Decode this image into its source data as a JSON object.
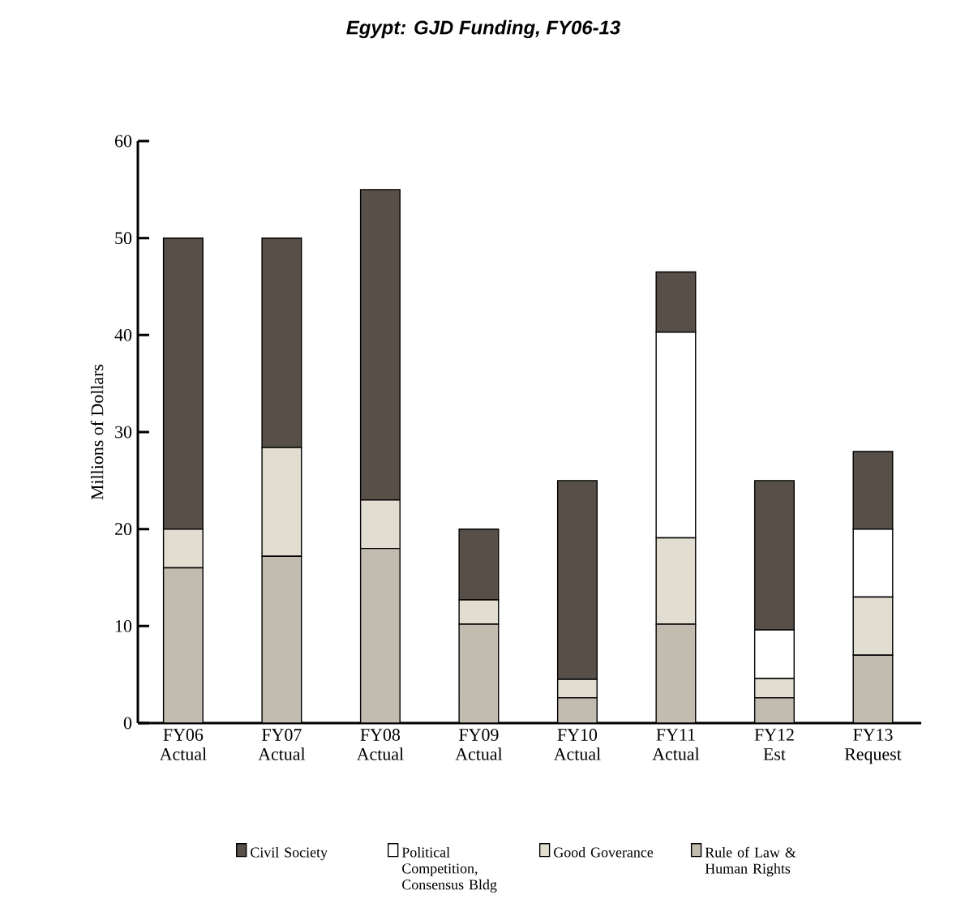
{
  "chart_data": {
    "type": "bar",
    "title": "Egypt: GJD Funding, FY06-13",
    "ylabel": "Millions of Dollars",
    "categories": [
      "FY06 Actual",
      "FY07 Actual",
      "FY08 Actual",
      "FY09 Actual",
      "FY10 Actual",
      "FY11 Actual",
      "FY12 Est",
      "FY13 Request"
    ],
    "stacked": true,
    "series": [
      {
        "name": "Rule of Law & Human Rights",
        "color": "#c2bbb0",
        "values": [
          16,
          17.2,
          18,
          10.2,
          2.6,
          10.2,
          2.6,
          7
        ]
      },
      {
        "name": "Good Goverance",
        "color": "#e1ddd0",
        "values": [
          4,
          11.2,
          5,
          2.5,
          1.9,
          8.9,
          2,
          6
        ]
      },
      {
        "name": "Political Competition, Consensus Bldg",
        "color": "#ffffff",
        "values": [
          null,
          null,
          null,
          null,
          null,
          21.2,
          5,
          7
        ]
      },
      {
        "name": "Civil Society",
        "color": "#574f48",
        "values": [
          30,
          21.6,
          32,
          7.3,
          20.5,
          6.2,
          15.4,
          8
        ]
      }
    ],
    "ylim": [
      0,
      60
    ],
    "yticks": [
      0,
      10,
      20,
      30,
      40,
      50,
      60
    ],
    "grid": false,
    "legend": "bottom"
  }
}
